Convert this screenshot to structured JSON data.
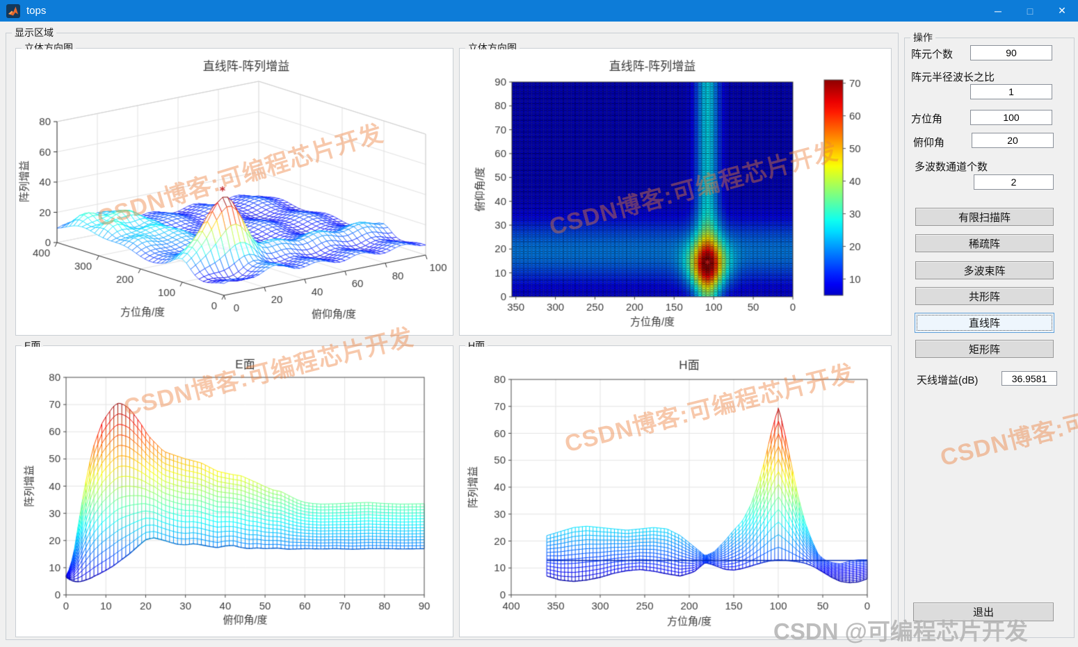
{
  "window": {
    "title": "tops",
    "icons": {
      "minimize": "─",
      "maximize": "□",
      "close": "✕"
    }
  },
  "panels": {
    "display_area": "显示区域",
    "stereo1": "立体方向图",
    "stereo2": "立体方向图",
    "eplane": "E面",
    "hplane": "H面",
    "operations": "操作"
  },
  "fields": {
    "element_count": {
      "label": "阵元个数",
      "value": "90"
    },
    "radius_ratio": {
      "label": "阵元半径波长之比",
      "value": "1"
    },
    "azimuth": {
      "label": "方位角",
      "value": "100"
    },
    "elevation": {
      "label": "俯仰角",
      "value": "20"
    },
    "beam_channels": {
      "label": "多波数通道个数",
      "value": "2"
    }
  },
  "buttons": {
    "limited_scan": "有限扫描阵",
    "sparse": "稀疏阵",
    "multibeam": "多波束阵",
    "conformal": "共形阵",
    "linear": "直线阵",
    "rectangular": "矩形阵",
    "exit": "退出"
  },
  "gain": {
    "label": "天线增益(dB)",
    "value": "36.9581"
  },
  "watermark": {
    "diagonal": "CSDN博客:可编程芯片开发",
    "corner": "CSDN @可编程芯片开发"
  },
  "chart_data": [
    {
      "id": "surface3d",
      "type": "surface",
      "title": "直线阵-阵列增益",
      "xlabel": "俯仰角/度",
      "ylabel": "方位角/度",
      "zlabel": "阵列增益",
      "x_range": [
        0,
        100
      ],
      "x_ticks": [
        0,
        20,
        40,
        60,
        80,
        100
      ],
      "y_range": [
        0,
        400
      ],
      "y_ticks": [
        0,
        100,
        200,
        300,
        400
      ],
      "z_range": [
        0,
        80
      ],
      "z_ticks": [
        0,
        20,
        40,
        60,
        80
      ],
      "peak": {
        "azimuth": 100,
        "elevation": 20,
        "value": 47
      },
      "marker": "*",
      "color_max": 48,
      "field": {
        "base": 7,
        "peak": {
          "az": 100,
          "el": 20,
          "amp": 33,
          "saz": 30,
          "sel": 11
        },
        "column": {
          "az": 100,
          "amp": 6,
          "saz": 25
        },
        "band": {
          "el": 20,
          "amp": 5,
          "sel": 15
        },
        "hills": {
          "az": 320,
          "el": 10,
          "amp": 9,
          "saz": 85,
          "sel": 20
        },
        "dip": {
          "az": 35,
          "el": 12,
          "amp": 7,
          "saz": 40,
          "sel": 12
        }
      }
    },
    {
      "id": "heatmap",
      "type": "heatmap",
      "title": "直线阵-阵列增益",
      "xlabel": "方位角/度",
      "ylabel": "俯仰角/度",
      "x_range": [
        355,
        0
      ],
      "x_ticks": [
        350,
        300,
        250,
        200,
        150,
        100,
        50,
        0
      ],
      "y_range": [
        0,
        90
      ],
      "y_ticks": [
        0,
        10,
        20,
        30,
        40,
        50,
        60,
        70,
        80,
        90
      ],
      "colorbar": {
        "range": [
          5,
          71
        ],
        "ticks": [
          10,
          20,
          30,
          40,
          50,
          60,
          70
        ]
      },
      "marker": {
        "az": 108,
        "el": 14,
        "glyph": "*"
      },
      "color_max": 72,
      "field": {
        "base": 5.5,
        "clamp_max": 71,
        "peak": {
          "az": 108,
          "el": 13,
          "amp": 38,
          "saz": 24,
          "sel": 10
        },
        "column": {
          "az": 108,
          "amp": 20,
          "saz": 15
        },
        "band": {
          "el": 19,
          "amp": 13,
          "sel": 13
        }
      }
    },
    {
      "id": "eplane",
      "type": "mesh_profile",
      "title": "E面",
      "xlabel": "俯仰角/度",
      "ylabel": "阵列增益",
      "x_range": [
        0,
        90
      ],
      "x_ticks": [
        0,
        10,
        20,
        30,
        40,
        50,
        60,
        70,
        80,
        90
      ],
      "y_range": [
        0,
        80
      ],
      "y_ticks": [
        0,
        10,
        20,
        30,
        40,
        50,
        60,
        70,
        80
      ],
      "n_levels": 15,
      "color_max": 72,
      "baseline": null,
      "top_envelope": [
        [
          0,
          7
        ],
        [
          1,
          10
        ],
        [
          2,
          16
        ],
        [
          3,
          25
        ],
        [
          4,
          34
        ],
        [
          5,
          42
        ],
        [
          6,
          49
        ],
        [
          7,
          55
        ],
        [
          8,
          59
        ],
        [
          9,
          63
        ],
        [
          10,
          65.5
        ],
        [
          11,
          67.5
        ],
        [
          12,
          69.5
        ],
        [
          13,
          70.5
        ],
        [
          14,
          70.3
        ],
        [
          15,
          69.5
        ],
        [
          16,
          68.3
        ],
        [
          17,
          66.5
        ],
        [
          18,
          64.5
        ],
        [
          19,
          62.5
        ],
        [
          20,
          60
        ],
        [
          21,
          58
        ],
        [
          22,
          56.5
        ],
        [
          23,
          55
        ],
        [
          24,
          53.5
        ],
        [
          25,
          52.5
        ],
        [
          26,
          52
        ],
        [
          27,
          51.5
        ],
        [
          28,
          51
        ],
        [
          30,
          50
        ],
        [
          32,
          49.3
        ],
        [
          34,
          48.5
        ],
        [
          36,
          47
        ],
        [
          38,
          45.5
        ],
        [
          40,
          44.8
        ],
        [
          42,
          44.2
        ],
        [
          44,
          43.8
        ],
        [
          46,
          42.5
        ],
        [
          48,
          41.2
        ],
        [
          50,
          39.8
        ],
        [
          52,
          38.6
        ],
        [
          54,
          38
        ],
        [
          56,
          36.5
        ],
        [
          58,
          35
        ],
        [
          60,
          34
        ],
        [
          62,
          33.6
        ],
        [
          64,
          33.4
        ],
        [
          68,
          33.5
        ],
        [
          72,
          33.8
        ],
        [
          76,
          34
        ],
        [
          80,
          33.6
        ],
        [
          84,
          33.4
        ],
        [
          90,
          33.5
        ]
      ],
      "bottom_envelope": [
        [
          0,
          6.5
        ],
        [
          1,
          5.5
        ],
        [
          2,
          5
        ],
        [
          3,
          4.8
        ],
        [
          4,
          5
        ],
        [
          5,
          5.5
        ],
        [
          6,
          6
        ],
        [
          7,
          6.8
        ],
        [
          8,
          7.5
        ],
        [
          10,
          9
        ],
        [
          12,
          10.8
        ],
        [
          14,
          13
        ],
        [
          16,
          15.2
        ],
        [
          18,
          17.8
        ],
        [
          20,
          20.3
        ],
        [
          22,
          21
        ],
        [
          24,
          20.3
        ],
        [
          26,
          19.4
        ],
        [
          28,
          18.6
        ],
        [
          30,
          18.4
        ],
        [
          32,
          18.8
        ],
        [
          34,
          18.4
        ],
        [
          36,
          17.8
        ],
        [
          38,
          17.4
        ],
        [
          40,
          18
        ],
        [
          42,
          18.2
        ],
        [
          44,
          17.4
        ],
        [
          46,
          17
        ],
        [
          48,
          17.3
        ],
        [
          50,
          17
        ],
        [
          53,
          17.2
        ],
        [
          56,
          16.8
        ],
        [
          60,
          17
        ],
        [
          64,
          16.9
        ],
        [
          68,
          17
        ],
        [
          72,
          16.8
        ],
        [
          76,
          17
        ],
        [
          80,
          17
        ],
        [
          85,
          16.9
        ],
        [
          90,
          17
        ]
      ]
    },
    {
      "id": "hplane",
      "type": "mesh_profile",
      "title": "H面",
      "xlabel": "方位角/度",
      "ylabel": "阵列增益",
      "x_range": [
        400,
        0
      ],
      "x_ticks": [
        400,
        350,
        300,
        250,
        200,
        150,
        100,
        50,
        0
      ],
      "y_range": [
        0,
        80
      ],
      "y_ticks": [
        0,
        10,
        20,
        30,
        40,
        50,
        60,
        70,
        80
      ],
      "n_levels": 12,
      "color_max": 72,
      "baseline": 12.8,
      "top_envelope": [
        [
          0,
          13
        ],
        [
          10,
          13
        ],
        [
          20,
          12.5
        ],
        [
          30,
          11.5
        ],
        [
          40,
          12
        ],
        [
          48,
          13
        ],
        [
          55,
          15
        ],
        [
          62,
          20
        ],
        [
          70,
          27
        ],
        [
          78,
          37
        ],
        [
          85,
          48
        ],
        [
          92,
          59
        ],
        [
          97,
          66
        ],
        [
          100,
          69.5
        ],
        [
          103,
          66
        ],
        [
          108,
          60
        ],
        [
          115,
          50
        ],
        [
          122,
          42
        ],
        [
          130,
          34
        ],
        [
          140,
          27.5
        ],
        [
          150,
          24
        ],
        [
          160,
          20
        ],
        [
          172,
          16
        ],
        [
          182,
          14.5
        ],
        [
          195,
          18
        ],
        [
          210,
          22
        ],
        [
          225,
          24.5
        ],
        [
          240,
          25
        ],
        [
          255,
          24.5
        ],
        [
          270,
          24
        ],
        [
          285,
          24.5
        ],
        [
          300,
          25
        ],
        [
          315,
          25.5
        ],
        [
          330,
          25
        ],
        [
          345,
          23.5
        ],
        [
          360,
          22
        ]
      ],
      "bottom_envelope": [
        [
          0,
          6
        ],
        [
          10,
          4.8
        ],
        [
          20,
          4.5
        ],
        [
          30,
          5
        ],
        [
          40,
          6.5
        ],
        [
          50,
          8.5
        ],
        [
          60,
          10.5
        ],
        [
          70,
          11.8
        ],
        [
          80,
          12.4
        ],
        [
          90,
          12.8
        ],
        [
          100,
          13
        ],
        [
          110,
          12.6
        ],
        [
          120,
          11.8
        ],
        [
          130,
          10.8
        ],
        [
          140,
          9.8
        ],
        [
          150,
          9.2
        ],
        [
          160,
          9.5
        ],
        [
          172,
          11
        ],
        [
          182,
          12
        ],
        [
          195,
          8.5
        ],
        [
          210,
          7
        ],
        [
          225,
          7.8
        ],
        [
          240,
          8.8
        ],
        [
          255,
          9.4
        ],
        [
          270,
          9
        ],
        [
          285,
          8
        ],
        [
          300,
          6.5
        ],
        [
          315,
          5.5
        ],
        [
          330,
          5
        ],
        [
          345,
          5.5
        ],
        [
          360,
          7
        ]
      ]
    }
  ]
}
